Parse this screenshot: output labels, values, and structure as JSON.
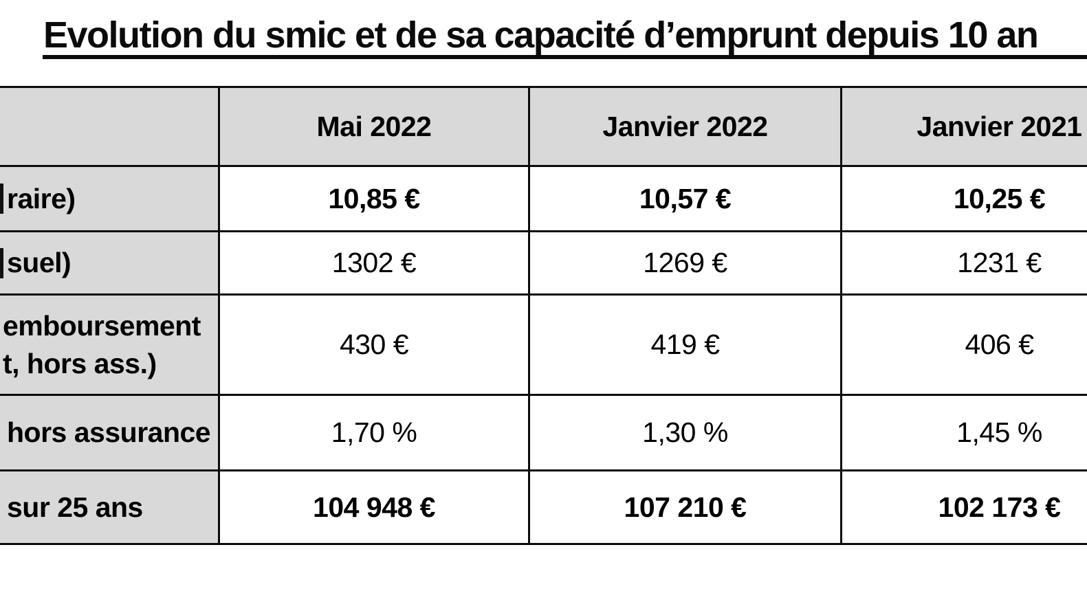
{
  "title": {
    "text": "Evolution du smic et de sa capacité d’emprunt depuis 10 an"
  },
  "colors": {
    "header_bg": "#d9d9d9",
    "label_bg": "#d9d9d9",
    "cell_bg": "#ffffff",
    "border": "#0b0b0b"
  },
  "table": {
    "columns": [
      "",
      "Mai 2022",
      "Janvier 2022",
      "Janvier 2021"
    ],
    "rows": [
      {
        "label_lines": [
          "raire)"
        ],
        "values": [
          "10,85 €",
          "10,57 €",
          "10,25 €"
        ],
        "bold": true
      },
      {
        "label_lines": [
          "suel)"
        ],
        "values": [
          "1302 €",
          "1269 €",
          "1231 €"
        ],
        "bold": false
      },
      {
        "label_lines": [
          "emboursement",
          "t, hors ass.)"
        ],
        "values": [
          "430 €",
          "419 €",
          "406 €"
        ],
        "bold": false
      },
      {
        "label_lines": [
          "hors assurance"
        ],
        "values": [
          "1,70 %",
          "1,30 %",
          "1,45 %"
        ],
        "bold": false
      },
      {
        "label_lines": [
          "sur 25 ans"
        ],
        "values": [
          "104 948 €",
          "107 210 €",
          "102 173 €"
        ],
        "bold": true
      }
    ]
  },
  "chart_data": {
    "type": "table",
    "title": "Evolution du smic et de sa capacité d’emprunt depuis 10 an",
    "columns": [
      "",
      "Mai 2022",
      "Janvier 2022",
      "Janvier 2021"
    ],
    "rows": [
      {
        "label": "raire)",
        "values": [
          "10,85 €",
          "10,57 €",
          "10,25 €"
        ]
      },
      {
        "label": "suel)",
        "values": [
          "1302 €",
          "1269 €",
          "1231 €"
        ]
      },
      {
        "label": "emboursement t, hors ass.)",
        "values": [
          "430 €",
          "419 €",
          "406 €"
        ]
      },
      {
        "label": "hors assurance",
        "values": [
          "1,70 %",
          "1,30 %",
          "1,45 %"
        ]
      },
      {
        "label": "sur 25 ans",
        "values": [
          "104 948 €",
          "107 210 €",
          "102 173 €"
        ]
      }
    ],
    "layout": {
      "header_fill": "#d9d9d9",
      "label_column_fill": "#d9d9d9",
      "grid": true,
      "cropped_edges": [
        "left",
        "right"
      ]
    }
  }
}
